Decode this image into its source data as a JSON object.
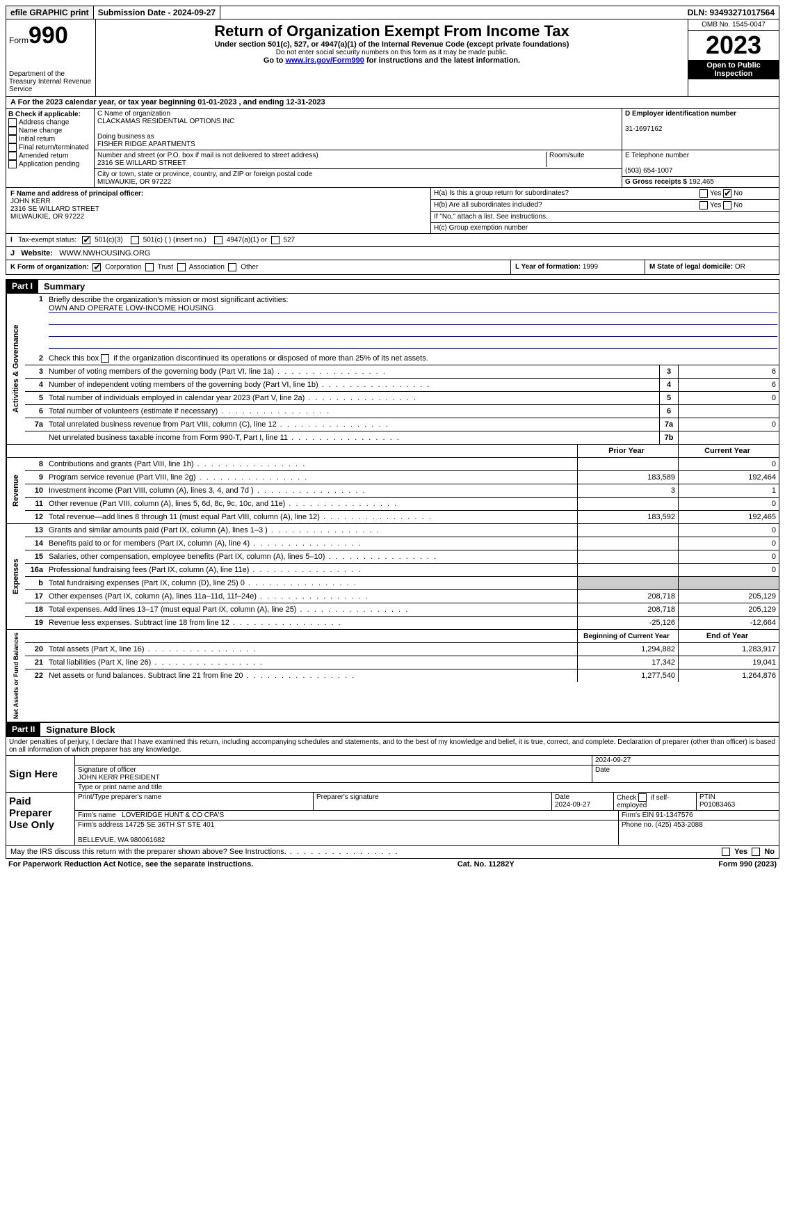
{
  "topbar": {
    "efile": "efile GRAPHIC print",
    "submission_label": "Submission Date - 2024-09-27",
    "dln_label": "DLN: 93493271017564"
  },
  "header": {
    "form_word": "Form",
    "form_number": "990",
    "dept": "Department of the Treasury Internal Revenue Service",
    "title": "Return of Organization Exempt From Income Tax",
    "subtitle": "Under section 501(c), 527, or 4947(a)(1) of the Internal Revenue Code (except private foundations)",
    "note1": "Do not enter social security numbers on this form as it may be made public.",
    "note2_pre": "Go to ",
    "note2_link": "www.irs.gov/Form990",
    "note2_post": " for instructions and the latest information.",
    "omb": "OMB No. 1545-0047",
    "year": "2023",
    "inspect": "Open to Public Inspection"
  },
  "secA": "For the 2023 calendar year, or tax year beginning 01-01-2023   , and ending 12-31-2023",
  "boxB": {
    "title": "B Check if applicable:",
    "opts": [
      "Address change",
      "Name change",
      "Initial return",
      "Final return/terminated",
      "Amended return",
      "Application pending"
    ]
  },
  "boxC": {
    "name_label": "C Name of organization",
    "name": "CLACKAMAS RESIDENTIAL OPTIONS INC",
    "dba_label": "Doing business as",
    "dba": "FISHER RIDGE APARTMENTS",
    "street_label": "Number and street (or P.O. box if mail is not delivered to street address)",
    "room_label": "Room/suite",
    "street": "2316 SE WILLARD STREET",
    "city_label": "City or town, state or province, country, and ZIP or foreign postal code",
    "city": "MILWAUKIE, OR  97222"
  },
  "boxD": {
    "label": "D Employer identification number",
    "value": "31-1697162"
  },
  "boxE": {
    "label": "E Telephone number",
    "value": "(503) 654-1007"
  },
  "boxG": {
    "label": "G Gross receipts $",
    "value": "192,465"
  },
  "boxF": {
    "label": "F  Name and address of principal officer:",
    "name": "JOHN KERR",
    "street": "2316 SE WILLARD STREET",
    "city": "MILWAUKIE, OR  97222"
  },
  "boxH": {
    "a": "H(a)  Is this a group return for subordinates?",
    "b": "H(b)  Are all subordinates included?",
    "note": "If \"No,\" attach a list. See instructions.",
    "c": "H(c)  Group exemption number"
  },
  "taxexempt": {
    "label": "Tax-exempt status:",
    "opt1": "501(c)(3)",
    "opt2": "501(c) (  ) (insert no.)",
    "opt3": "4947(a)(1) or",
    "opt4": "527"
  },
  "website": {
    "label": "Website:",
    "value": "WWW.NWHOUSING.ORG"
  },
  "boxK": {
    "label": "K Form of organization:",
    "opts": [
      "Corporation",
      "Trust",
      "Association",
      "Other"
    ]
  },
  "boxL": {
    "label": "L Year of formation:",
    "value": "1999"
  },
  "boxM": {
    "label": "M State of legal domicile:",
    "value": "OR"
  },
  "partI": {
    "header": "Part I",
    "title": "Summary",
    "line1": "Briefly describe the organization's mission or most significant activities:",
    "mission": "OWN AND OPERATE LOW-INCOME HOUSING",
    "line2": "Check this box      if the organization discontinued its operations or disposed of more than 25% of its net assets.",
    "lines_gov": [
      {
        "n": "3",
        "d": "Number of voting members of the governing body (Part VI, line 1a)",
        "box": "3",
        "v": "6"
      },
      {
        "n": "4",
        "d": "Number of independent voting members of the governing body (Part VI, line 1b)",
        "box": "4",
        "v": "6"
      },
      {
        "n": "5",
        "d": "Total number of individuals employed in calendar year 2023 (Part V, line 2a)",
        "box": "5",
        "v": "0"
      },
      {
        "n": "6",
        "d": "Total number of volunteers (estimate if necessary)",
        "box": "6",
        "v": ""
      },
      {
        "n": "7a",
        "d": "Total unrelated business revenue from Part VIII, column (C), line 12",
        "box": "7a",
        "v": "0"
      },
      {
        "n": "",
        "d": "Net unrelated business taxable income from Form 990-T, Part I, line 11",
        "box": "7b",
        "v": ""
      }
    ],
    "col_prior": "Prior Year",
    "col_current": "Current Year",
    "revenue": [
      {
        "n": "8",
        "d": "Contributions and grants (Part VIII, line 1h)",
        "p": "",
        "c": "0"
      },
      {
        "n": "9",
        "d": "Program service revenue (Part VIII, line 2g)",
        "p": "183,589",
        "c": "192,464"
      },
      {
        "n": "10",
        "d": "Investment income (Part VIII, column (A), lines 3, 4, and 7d )",
        "p": "3",
        "c": "1"
      },
      {
        "n": "11",
        "d": "Other revenue (Part VIII, column (A), lines 5, 6d, 8c, 9c, 10c, and 11e)",
        "p": "",
        "c": "0"
      },
      {
        "n": "12",
        "d": "Total revenue—add lines 8 through 11 (must equal Part VIII, column (A), line 12)",
        "p": "183,592",
        "c": "192,465"
      }
    ],
    "expenses": [
      {
        "n": "13",
        "d": "Grants and similar amounts paid (Part IX, column (A), lines 1–3 )",
        "p": "",
        "c": "0"
      },
      {
        "n": "14",
        "d": "Benefits paid to or for members (Part IX, column (A), line 4)",
        "p": "",
        "c": "0"
      },
      {
        "n": "15",
        "d": "Salaries, other compensation, employee benefits (Part IX, column (A), lines 5–10)",
        "p": "",
        "c": "0"
      },
      {
        "n": "16a",
        "d": "Professional fundraising fees (Part IX, column (A), line 11e)",
        "p": "",
        "c": "0"
      },
      {
        "n": "b",
        "d": "Total fundraising expenses (Part IX, column (D), line 25) 0",
        "p": "shade",
        "c": "shade"
      },
      {
        "n": "17",
        "d": "Other expenses (Part IX, column (A), lines 11a–11d, 11f–24e)",
        "p": "208,718",
        "c": "205,129"
      },
      {
        "n": "18",
        "d": "Total expenses. Add lines 13–17 (must equal Part IX, column (A), line 25)",
        "p": "208,718",
        "c": "205,129"
      },
      {
        "n": "19",
        "d": "Revenue less expenses. Subtract line 18 from line 12",
        "p": "-25,126",
        "c": "-12,664"
      }
    ],
    "col_begin": "Beginning of Current Year",
    "col_end": "End of Year",
    "netassets": [
      {
        "n": "20",
        "d": "Total assets (Part X, line 16)",
        "p": "1,294,882",
        "c": "1,283,917"
      },
      {
        "n": "21",
        "d": "Total liabilities (Part X, line 26)",
        "p": "17,342",
        "c": "19,041"
      },
      {
        "n": "22",
        "d": "Net assets or fund balances. Subtract line 21 from line 20",
        "p": "1,277,540",
        "c": "1,264,876"
      }
    ]
  },
  "vlabels": {
    "gov": "Activities & Governance",
    "rev": "Revenue",
    "exp": "Expenses",
    "net": "Net Assets or Fund Balances"
  },
  "partII": {
    "header": "Part II",
    "title": "Signature Block",
    "decl": "Under penalties of perjury, I declare that I have examined this return, including accompanying schedules and statements, and to the best of my knowledge and belief, it is true, correct, and complete. Declaration of preparer (other than officer) is based on all information of which preparer has any knowledge."
  },
  "sign": {
    "here": "Sign Here",
    "sig_officer": "Signature of officer",
    "officer": "JOHN KERR  PRESIDENT",
    "type_label": "Type or print name and title",
    "date_label": "Date",
    "date": "2024-09-27"
  },
  "paid": {
    "label": "Paid Preparer Use Only",
    "print_label": "Print/Type preparer's name",
    "sig_label": "Preparer's signature",
    "date_label": "Date",
    "date": "2024-09-27",
    "check_label": "Check       if self-employed",
    "ptin_label": "PTIN",
    "ptin": "P01083463",
    "firm_name_label": "Firm's name",
    "firm_name": "LOVERIDGE HUNT & CO CPA'S",
    "firm_ein_label": "Firm's EIN",
    "firm_ein": "91-1347576",
    "firm_addr_label": "Firm's address",
    "firm_addr1": "14725 SE 36TH ST STE 401",
    "firm_addr2": "BELLEVUE, WA  980061682",
    "phone_label": "Phone no.",
    "phone": "(425) 453-2088"
  },
  "discuss": "May the IRS discuss this return with the preparer shown above? See Instructions.",
  "footer": {
    "left": "For Paperwork Reduction Act Notice, see the separate instructions.",
    "mid": "Cat. No. 11282Y",
    "right_pre": "Form ",
    "right_form": "990",
    "right_post": " (2023)"
  },
  "yesno": {
    "yes": "Yes",
    "no": "No"
  }
}
